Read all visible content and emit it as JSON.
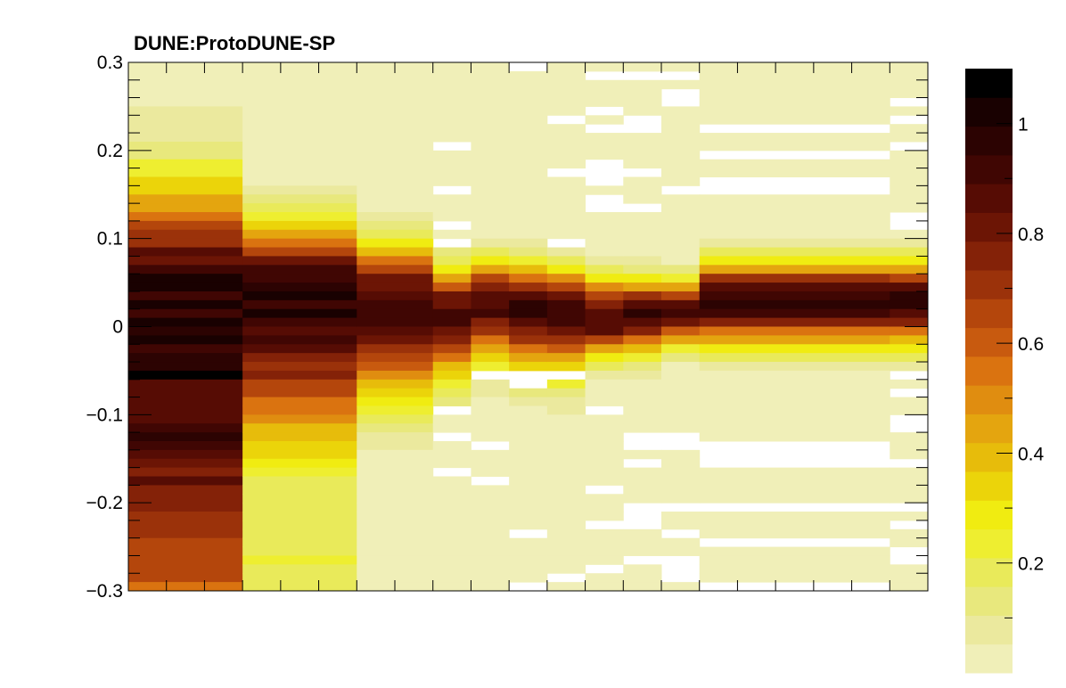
{
  "chart_data": {
    "type": "heatmap",
    "title": "DUNE:ProtoDUNE-SP",
    "xlabel": "",
    "ylabel": "",
    "ylim": [
      -0.3,
      0.3
    ],
    "y_ticks": [
      "0.3",
      "0.2",
      "0.1",
      "0",
      "−0.1",
      "−0.2",
      "−0.3"
    ],
    "y_tick_values": [
      0.3,
      0.2,
      0.1,
      0,
      -0.1,
      -0.2,
      -0.3
    ],
    "x_tick_labels": [],
    "colorbar": {
      "range": [
        0,
        1.1
      ],
      "ticks": [
        "1",
        "0.8",
        "0.6",
        "0.4",
        "0.2"
      ],
      "tick_values": [
        1,
        0.8,
        0.6,
        0.4,
        0.2
      ],
      "palette": [
        "#f0efb8",
        "#ebe99e",
        "#e8e87d",
        "#e9ea5a",
        "#eeee30",
        "#f0ec11",
        "#ebd40a",
        "#e7bc0b",
        "#e4a50f",
        "#e08d10",
        "#da7310",
        "#c85a0f",
        "#b4460c",
        "#9b320a",
        "#842208",
        "#6c1505",
        "#560c04",
        "#400603",
        "#2c0302",
        "#190101",
        "#000000"
      ]
    },
    "x_bins": [
      0,
      3,
      6,
      8,
      9,
      10,
      11,
      12,
      13,
      14,
      15,
      20,
      21
    ],
    "rows_per_group": 60,
    "groups": [
      {
        "peak_y": 0.025,
        "sigma_up": 0.09,
        "sigma_dn": 0.3,
        "amp": 1.0,
        "floor_top": 0.03,
        "floor_bot": 0.45,
        "noise": 0.1,
        "gap_rate": 0.0
      },
      {
        "peak_y": 0.04,
        "sigma_up": 0.05,
        "sigma_dn": 0.12,
        "amp": 1.0,
        "floor_top": 0.03,
        "floor_bot": 0.2,
        "noise": 0.08,
        "gap_rate": 0.0
      },
      {
        "peak_y": 0.025,
        "sigma_up": 0.045,
        "sigma_dn": 0.07,
        "amp": 0.95,
        "floor_top": 0.02,
        "floor_bot": 0.03,
        "noise": 0.07,
        "gap_rate": 0.0
      },
      {
        "peak_y": 0.015,
        "sigma_up": 0.035,
        "sigma_dn": 0.05,
        "amp": 0.9,
        "floor_top": 0.01,
        "floor_bot": 0.01,
        "noise": 0.06,
        "gap_rate": 0.12
      },
      {
        "peak_y": 0.03,
        "sigma_up": 0.03,
        "sigma_dn": 0.045,
        "amp": 0.9,
        "floor_top": 0.01,
        "floor_bot": 0.01,
        "noise": 0.06,
        "gap_rate": 0.1
      },
      {
        "peak_y": 0.025,
        "sigma_up": 0.03,
        "sigma_dn": 0.05,
        "amp": 0.92,
        "floor_top": 0.01,
        "floor_bot": 0.01,
        "noise": 0.06,
        "gap_rate": 0.14
      },
      {
        "peak_y": 0.02,
        "sigma_up": 0.03,
        "sigma_dn": 0.05,
        "amp": 0.9,
        "floor_top": 0.01,
        "floor_bot": 0.01,
        "noise": 0.06,
        "gap_rate": 0.12
      },
      {
        "peak_y": 0.01,
        "sigma_up": 0.03,
        "sigma_dn": 0.03,
        "amp": 0.92,
        "floor_top": 0.01,
        "floor_bot": 0.005,
        "noise": 0.05,
        "gap_rate": 0.18
      },
      {
        "peak_y": 0.015,
        "sigma_up": 0.025,
        "sigma_dn": 0.03,
        "amp": 0.95,
        "floor_top": 0.01,
        "floor_bot": 0.005,
        "noise": 0.05,
        "gap_rate": 0.22
      },
      {
        "peak_y": 0.015,
        "sigma_up": 0.025,
        "sigma_dn": 0.025,
        "amp": 0.9,
        "floor_top": 0.01,
        "floor_bot": 0.005,
        "noise": 0.05,
        "gap_rate": 0.25
      },
      {
        "peak_y": 0.03,
        "sigma_up": 0.03,
        "sigma_dn": 0.035,
        "amp": 0.95,
        "floor_top": 0.01,
        "floor_bot": 0.005,
        "noise": 0.05,
        "gap_rate": 0.22
      },
      {
        "peak_y": 0.03,
        "sigma_up": 0.03,
        "sigma_dn": 0.035,
        "amp": 0.95,
        "floor_top": 0.01,
        "floor_bot": 0.005,
        "noise": 0.05,
        "gap_rate": 0.22
      }
    ]
  }
}
